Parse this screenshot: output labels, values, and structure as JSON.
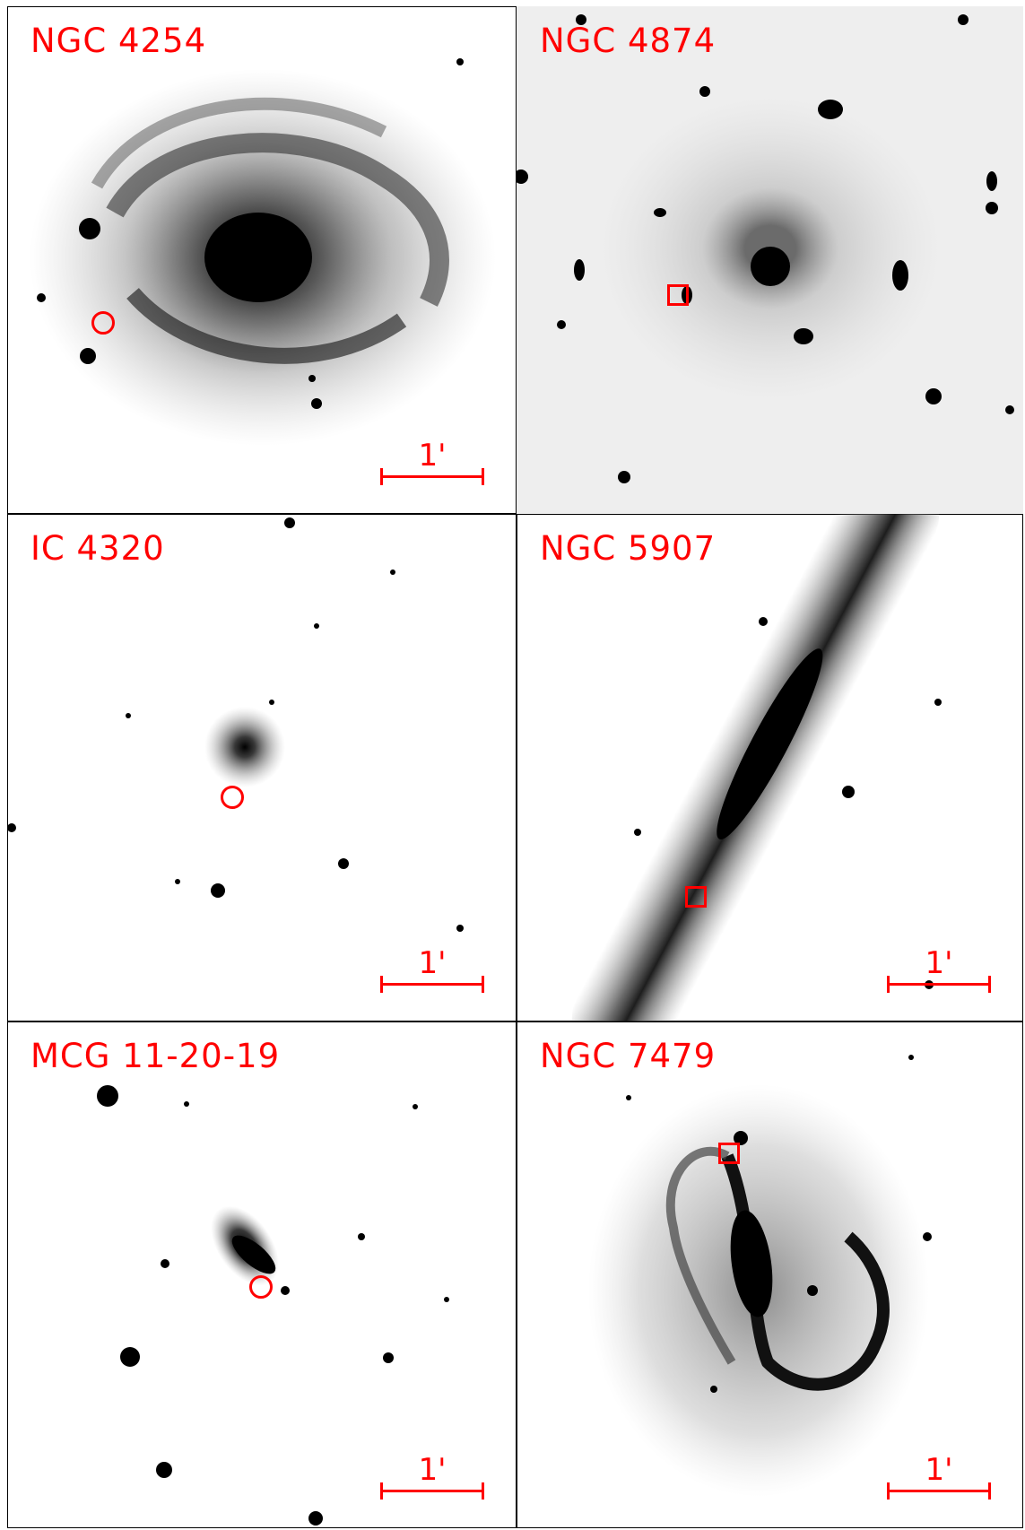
{
  "panels": [
    {
      "name": "NGC 4254",
      "scale": "1'",
      "marker": "circle"
    },
    {
      "name": "NGC 4874",
      "scale": "1'",
      "marker": "square"
    },
    {
      "name": "IC 4320",
      "scale": "1'",
      "marker": "circle"
    },
    {
      "name": "NGC 5907",
      "scale": "1'",
      "marker": "square"
    },
    {
      "name": "MCG 11-20-19",
      "scale": "1'",
      "marker": "circle"
    },
    {
      "name": "NGC 7479",
      "scale": "1'",
      "marker": "square"
    }
  ],
  "colors": {
    "annotation": "#ff0000",
    "border": "#000000"
  }
}
